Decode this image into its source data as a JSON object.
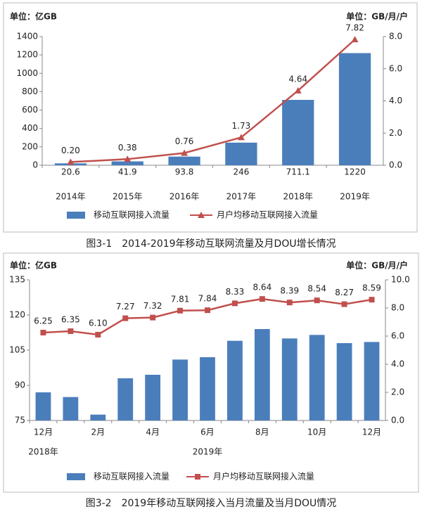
{
  "chart_data": [
    {
      "type": "bar-line",
      "ylabel": "单位：亿GB",
      "y2label": "单位：GB/月/户",
      "categories": [
        "2014年",
        "2015年",
        "2016年",
        "2017年",
        "2018年",
        "2019年"
      ],
      "series": [
        {
          "name": "移动互联网接入流量",
          "color": "#4a7ebb",
          "kind": "bar",
          "values": [
            20.6,
            41.9,
            93.8,
            246,
            711.1,
            1220
          ]
        },
        {
          "name": "月户均移动互联网接入流量",
          "color": "#c0504d",
          "kind": "line",
          "marker": "triangle",
          "axis": "y2",
          "values": [
            0.2,
            0.38,
            0.76,
            1.73,
            4.64,
            7.82
          ],
          "value_labels": [
            "0.20",
            "0.38",
            "0.76",
            "1.73",
            "4.64",
            "7.82"
          ]
        }
      ],
      "ylim": [
        0,
        1400
      ],
      "yticks": [
        0,
        200,
        400,
        600,
        800,
        1000,
        1200,
        1400
      ],
      "y2lim": [
        0,
        8
      ],
      "y2ticks": [
        {
          "value": 0,
          "label": "0.0"
        },
        {
          "value": 2,
          "label": "2.0"
        },
        {
          "value": 4,
          "label": "4.0"
        },
        {
          "value": 6,
          "label": "6.0"
        },
        {
          "value": 8,
          "label": "8.0"
        }
      ],
      "caption": "图3-1　2014-2019年移动互联网流量及月DOU增长情况"
    },
    {
      "type": "bar-line",
      "ylabel": "单位：亿GB",
      "y2label": "单位：GB/月/户",
      "categories": [
        "12月",
        null,
        "2月",
        null,
        "4月",
        null,
        "6月",
        null,
        "8月",
        null,
        "10月",
        null,
        "12月"
      ],
      "annotations": [
        "2018年",
        "2019年"
      ],
      "series": [
        {
          "name": "移动互联网接入流量",
          "color": "#4a7ebb",
          "kind": "bar",
          "values": [
            87,
            85,
            77.5,
            93,
            94.5,
            101,
            102,
            109,
            114,
            110,
            111.5,
            108,
            108.5
          ]
        },
        {
          "name": "月户均移动互联网接入流量",
          "color": "#c0504d",
          "kind": "line",
          "marker": "square",
          "axis": "y2",
          "values": [
            6.25,
            6.35,
            6.1,
            7.27,
            7.32,
            7.81,
            7.84,
            8.33,
            8.64,
            8.39,
            8.54,
            8.27,
            8.59
          ],
          "value_labels": [
            "6.25",
            "6.35",
            "6.10",
            "7.27",
            "7.32",
            "7.81",
            "7.84",
            "8.33",
            "8.64",
            "8.39",
            "8.54",
            "8.27",
            "8.59"
          ]
        }
      ],
      "ylim": [
        75,
        135
      ],
      "yticks": [
        75,
        90,
        105,
        120,
        135
      ],
      "y2lim": [
        0,
        10
      ],
      "y2ticks": [
        {
          "value": 0,
          "label": "0.0"
        },
        {
          "value": 2,
          "label": "2.0"
        },
        {
          "value": 4,
          "label": "4.0"
        },
        {
          "value": 6,
          "label": "6.0"
        },
        {
          "value": 8,
          "label": "8.0"
        },
        {
          "value": 10,
          "label": "10.0"
        }
      ],
      "caption": "图3-2　2019年移动互联网接入当月流量及当月DOU情况"
    }
  ]
}
